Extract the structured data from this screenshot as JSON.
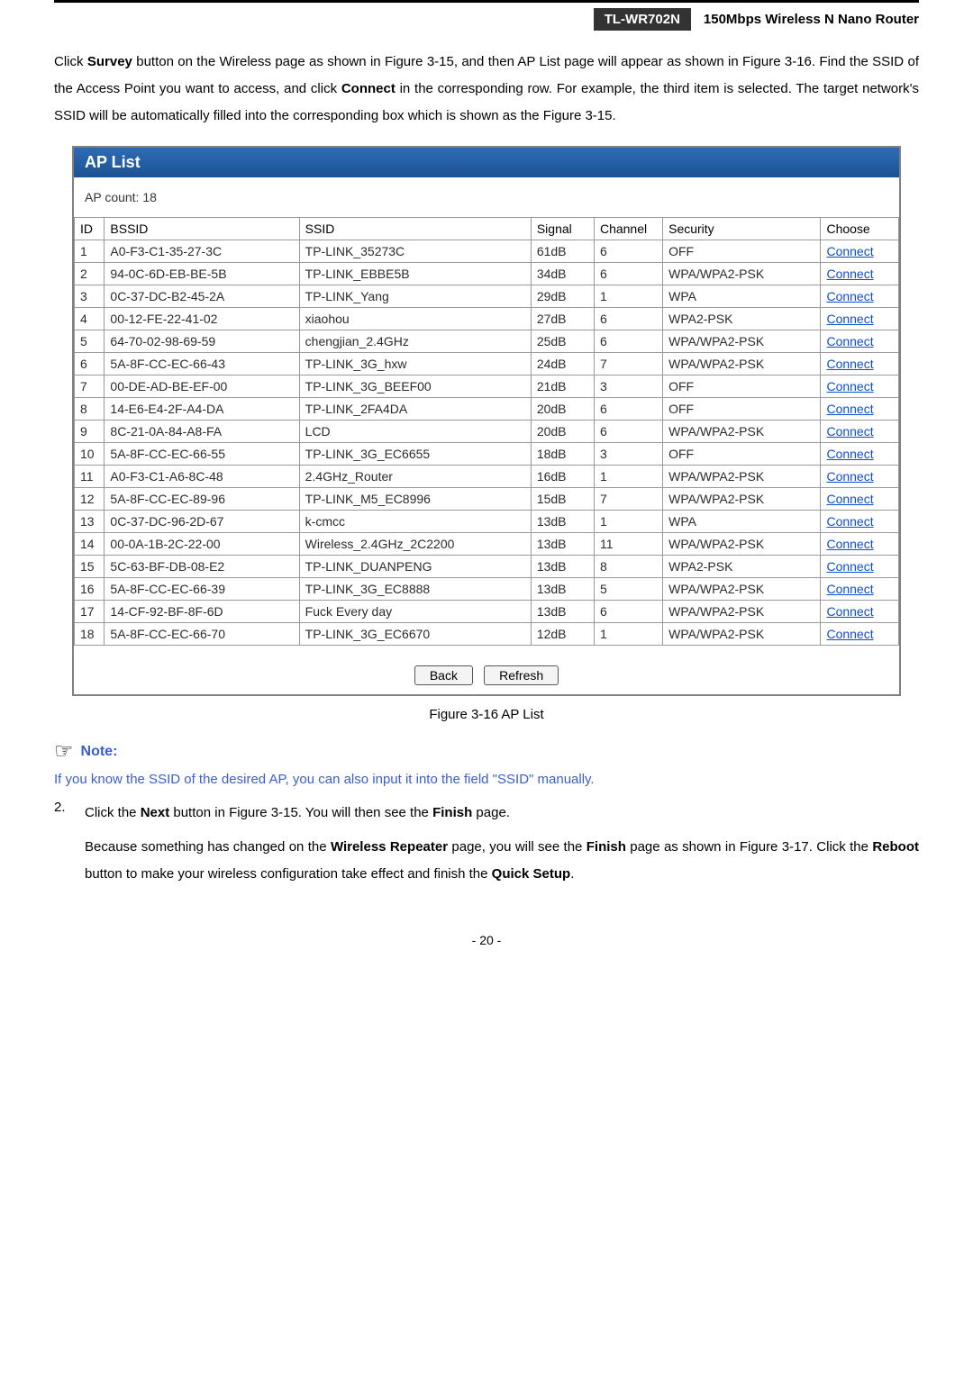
{
  "header": {
    "model": "TL-WR702N",
    "desc": "150Mbps  Wireless  N  Nano  Router"
  },
  "intro": "Click <b>Survey</b> button on the Wireless page as shown in Figure 3-15, and then AP List page will appear as shown in Figure 3-16. Find the SSID of the Access Point you want to access, and click <b>Connect</b> in the corresponding row. For example, the third item is selected. The target network's SSID will be automatically filled into the corresponding box which is shown as the Figure 3-15.",
  "panel": {
    "title": "AP List",
    "count_label": "AP count:  18",
    "columns": [
      "ID",
      "BSSID",
      "SSID",
      "Signal",
      "Channel",
      "Security",
      "Choose"
    ],
    "choose_label": "Connect",
    "rows": [
      {
        "id": "1",
        "bssid": "A0-F3-C1-35-27-3C",
        "ssid": "TP-LINK_35273C",
        "sig": "61dB",
        "chan": "6",
        "sec": "OFF"
      },
      {
        "id": "2",
        "bssid": "94-0C-6D-EB-BE-5B",
        "ssid": "TP-LINK_EBBE5B",
        "sig": "34dB",
        "chan": "6",
        "sec": "WPA/WPA2-PSK"
      },
      {
        "id": "3",
        "bssid": "0C-37-DC-B2-45-2A",
        "ssid": "TP-LINK_Yang",
        "sig": "29dB",
        "chan": "1",
        "sec": "WPA"
      },
      {
        "id": "4",
        "bssid": "00-12-FE-22-41-02",
        "ssid": "xiaohou",
        "sig": "27dB",
        "chan": "6",
        "sec": "WPA2-PSK"
      },
      {
        "id": "5",
        "bssid": "64-70-02-98-69-59",
        "ssid": "chengjian_2.4GHz",
        "sig": "25dB",
        "chan": "6",
        "sec": "WPA/WPA2-PSK"
      },
      {
        "id": "6",
        "bssid": "5A-8F-CC-EC-66-43",
        "ssid": "TP-LINK_3G_hxw",
        "sig": "24dB",
        "chan": "7",
        "sec": "WPA/WPA2-PSK"
      },
      {
        "id": "7",
        "bssid": "00-DE-AD-BE-EF-00",
        "ssid": "TP-LINK_3G_BEEF00",
        "sig": "21dB",
        "chan": "3",
        "sec": "OFF"
      },
      {
        "id": "8",
        "bssid": "14-E6-E4-2F-A4-DA",
        "ssid": "TP-LINK_2FA4DA",
        "sig": "20dB",
        "chan": "6",
        "sec": "OFF"
      },
      {
        "id": "9",
        "bssid": "8C-21-0A-84-A8-FA",
        "ssid": "LCD",
        "sig": "20dB",
        "chan": "6",
        "sec": "WPA/WPA2-PSK"
      },
      {
        "id": "10",
        "bssid": "5A-8F-CC-EC-66-55",
        "ssid": "TP-LINK_3G_EC6655",
        "sig": "18dB",
        "chan": "3",
        "sec": "OFF"
      },
      {
        "id": "11",
        "bssid": "A0-F3-C1-A6-8C-48",
        "ssid": "2.4GHz_Router",
        "sig": "16dB",
        "chan": "1",
        "sec": "WPA/WPA2-PSK"
      },
      {
        "id": "12",
        "bssid": "5A-8F-CC-EC-89-96",
        "ssid": "TP-LINK_M5_EC8996",
        "sig": "15dB",
        "chan": "7",
        "sec": "WPA/WPA2-PSK"
      },
      {
        "id": "13",
        "bssid": "0C-37-DC-96-2D-67",
        "ssid": "k-cmcc",
        "sig": "13dB",
        "chan": "1",
        "sec": "WPA"
      },
      {
        "id": "14",
        "bssid": "00-0A-1B-2C-22-00",
        "ssid": "Wireless_2.4GHz_2C2200",
        "sig": "13dB",
        "chan": "11",
        "sec": "WPA/WPA2-PSK"
      },
      {
        "id": "15",
        "bssid": "5C-63-BF-DB-08-E2",
        "ssid": "TP-LINK_DUANPENG",
        "sig": "13dB",
        "chan": "8",
        "sec": "WPA2-PSK"
      },
      {
        "id": "16",
        "bssid": "5A-8F-CC-EC-66-39",
        "ssid": "TP-LINK_3G_EC8888",
        "sig": "13dB",
        "chan": "5",
        "sec": "WPA/WPA2-PSK"
      },
      {
        "id": "17",
        "bssid": "14-CF-92-BF-8F-6D",
        "ssid": "Fuck Every day",
        "sig": "13dB",
        "chan": "6",
        "sec": "WPA/WPA2-PSK"
      },
      {
        "id": "18",
        "bssid": "5A-8F-CC-EC-66-70",
        "ssid": "TP-LINK_3G_EC6670",
        "sig": "12dB",
        "chan": "1",
        "sec": "WPA/WPA2-PSK"
      }
    ],
    "buttons": {
      "back": "Back",
      "refresh": "Refresh"
    }
  },
  "figure_caption": "Figure 3-16 AP List",
  "note": {
    "label": "Note:",
    "body": "If you know the SSID of the desired AP, you can also input it into the field \"SSID\" manually."
  },
  "step": {
    "num": "2.",
    "line": "Click the <b>Next</b> button in Figure 3-15. You will then see the <b>Finish</b> page.",
    "sub": "Because something has changed on the <b>Wireless Repeater</b> page, you will see the <b>Finish</b> page as shown in Figure 3-17. Click the <b>Reboot</b> button to make your wireless configuration take effect and finish the <b>Quick Setup</b>."
  },
  "page_number": "- 20 -"
}
